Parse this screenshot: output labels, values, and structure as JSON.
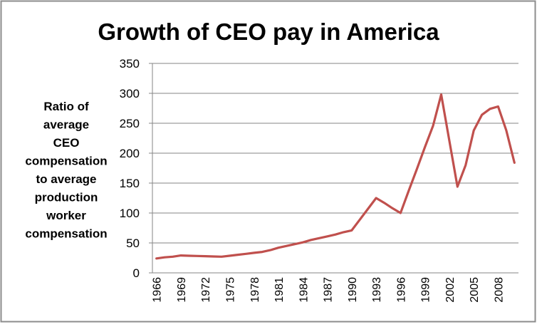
{
  "chart_data": {
    "type": "line",
    "title": "Growth of CEO pay in America",
    "xlabel": "",
    "ylabel": "Ratio of average CEO compensation to average production worker compensation",
    "ylabel_lines": [
      "Ratio of",
      "average",
      "CEO",
      "compensation",
      "to average",
      "production",
      "worker",
      "compensation"
    ],
    "ylim": [
      0,
      350
    ],
    "yticks": [
      0,
      50,
      100,
      150,
      200,
      250,
      300,
      350
    ],
    "grid": true,
    "legend": "none",
    "line_color": "#c0504d",
    "x": [
      1966,
      1967,
      1968,
      1969,
      1970,
      1971,
      1972,
      1973,
      1974,
      1975,
      1976,
      1977,
      1978,
      1979,
      1980,
      1981,
      1982,
      1983,
      1984,
      1985,
      1986,
      1987,
      1988,
      1989,
      1990,
      1991,
      1992,
      1993,
      1994,
      1995,
      1996,
      1997,
      1998,
      1999,
      2000,
      2001,
      2002,
      2003,
      2004,
      2005,
      2006,
      2007,
      2008,
      2009,
      2010
    ],
    "xtick_labels": [
      "1966",
      "1969",
      "1972",
      "1975",
      "1978",
      "1981",
      "1984",
      "1987",
      "1990",
      "1993",
      "1996",
      "1999",
      "2002",
      "2005",
      "2008"
    ],
    "series": [
      {
        "values": [
          24,
          26,
          27,
          29,
          28.6,
          28.2,
          27.8,
          27.4,
          27,
          28.6,
          30.2,
          31.8,
          33.4,
          35,
          38,
          42,
          45,
          48,
          51,
          55,
          58,
          61,
          64,
          68,
          71,
          89,
          107,
          125,
          117,
          108,
          100,
          137,
          173,
          210,
          246,
          298,
          221,
          144,
          180,
          238,
          264,
          274,
          278,
          238,
          184
        ]
      }
    ]
  }
}
